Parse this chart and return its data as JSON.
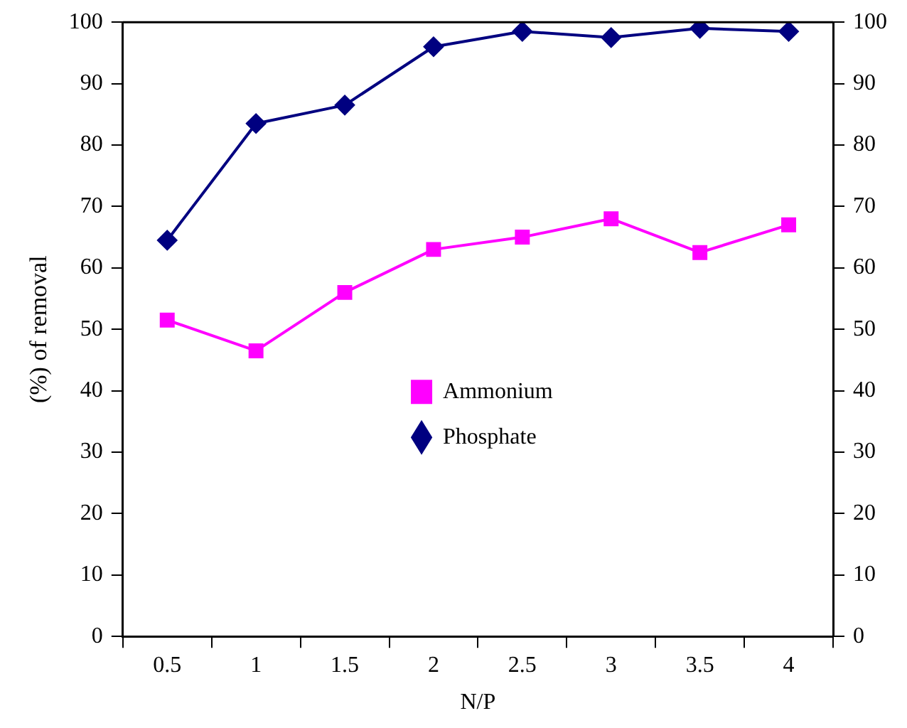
{
  "chart_data": {
    "type": "line",
    "xlabel": "N/P",
    "ylabel": "(%) of removal",
    "categories": [
      "0.5",
      "1",
      "1.5",
      "2",
      "2.5",
      "3",
      "3.5",
      "4"
    ],
    "series": [
      {
        "name": "Ammonium",
        "color": "#ff00ff",
        "marker": "square",
        "values": [
          51.5,
          46.5,
          56,
          63,
          65,
          68,
          62.5,
          67
        ]
      },
      {
        "name": "Phosphate",
        "color": "#000080",
        "marker": "diamond",
        "values": [
          64.5,
          83.5,
          86.5,
          96,
          98.5,
          97.5,
          99,
          98.5
        ]
      }
    ],
    "ylim": [
      0,
      100
    ],
    "yticks": [
      0,
      10,
      20,
      30,
      40,
      50,
      60,
      70,
      80,
      90,
      100
    ],
    "y2lim": [
      0,
      100
    ],
    "y2ticks": [
      0,
      10,
      20,
      30,
      40,
      50,
      60,
      70,
      80,
      90,
      100
    ],
    "grid": false,
    "legend": "center",
    "line_style": "solid"
  }
}
